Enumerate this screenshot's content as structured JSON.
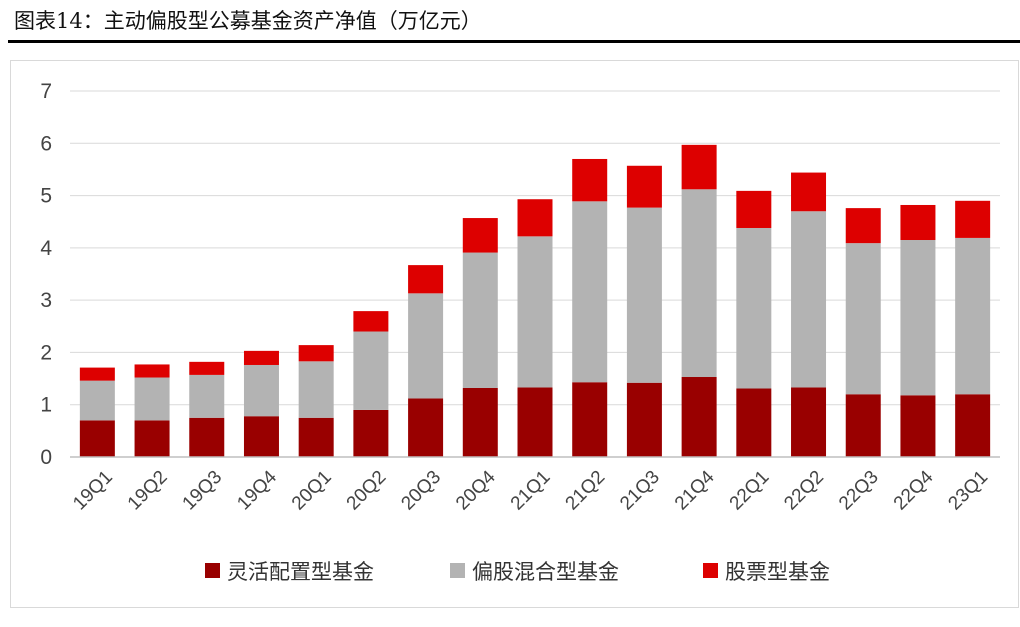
{
  "figure": {
    "title": "图表14：主动偏股型公募基金资产净值（万亿元）"
  },
  "colors": {
    "flexible": "#990000",
    "mixed": "#b3b3b3",
    "stock": "#dd0000",
    "axis": "#bfbfbf",
    "grid": "#d9d9d9"
  },
  "chart_data": {
    "type": "bar",
    "stacked": true,
    "title": "主动偏股型公募基金资产净值（万亿元）",
    "xlabel": "",
    "ylabel": "",
    "ylim": [
      0,
      7
    ],
    "yticks": [
      0,
      1,
      2,
      3,
      4,
      5,
      6,
      7
    ],
    "grid": true,
    "legend_position": "bottom",
    "categories": [
      "19Q1",
      "19Q2",
      "19Q3",
      "19Q4",
      "20Q1",
      "20Q2",
      "20Q3",
      "20Q4",
      "21Q1",
      "21Q2",
      "21Q3",
      "21Q4",
      "22Q1",
      "22Q2",
      "22Q3",
      "22Q4",
      "23Q1"
    ],
    "series": [
      {
        "name": "灵活配置型基金",
        "color_key": "flexible",
        "values": [
          0.7,
          0.7,
          0.75,
          0.78,
          0.75,
          0.9,
          1.12,
          1.32,
          1.33,
          1.43,
          1.42,
          1.53,
          1.31,
          1.33,
          1.2,
          1.18,
          1.2
        ]
      },
      {
        "name": "偏股混合型基金",
        "color_key": "mixed",
        "values": [
          0.76,
          0.82,
          0.82,
          0.98,
          1.08,
          1.5,
          2.01,
          2.59,
          2.89,
          3.46,
          3.35,
          3.59,
          3.07,
          3.37,
          2.89,
          2.97,
          2.99
        ]
      },
      {
        "name": "股票型基金",
        "color_key": "stock",
        "values": [
          0.25,
          0.25,
          0.25,
          0.27,
          0.31,
          0.39,
          0.54,
          0.66,
          0.71,
          0.81,
          0.8,
          0.85,
          0.71,
          0.74,
          0.67,
          0.67,
          0.71
        ]
      }
    ]
  }
}
